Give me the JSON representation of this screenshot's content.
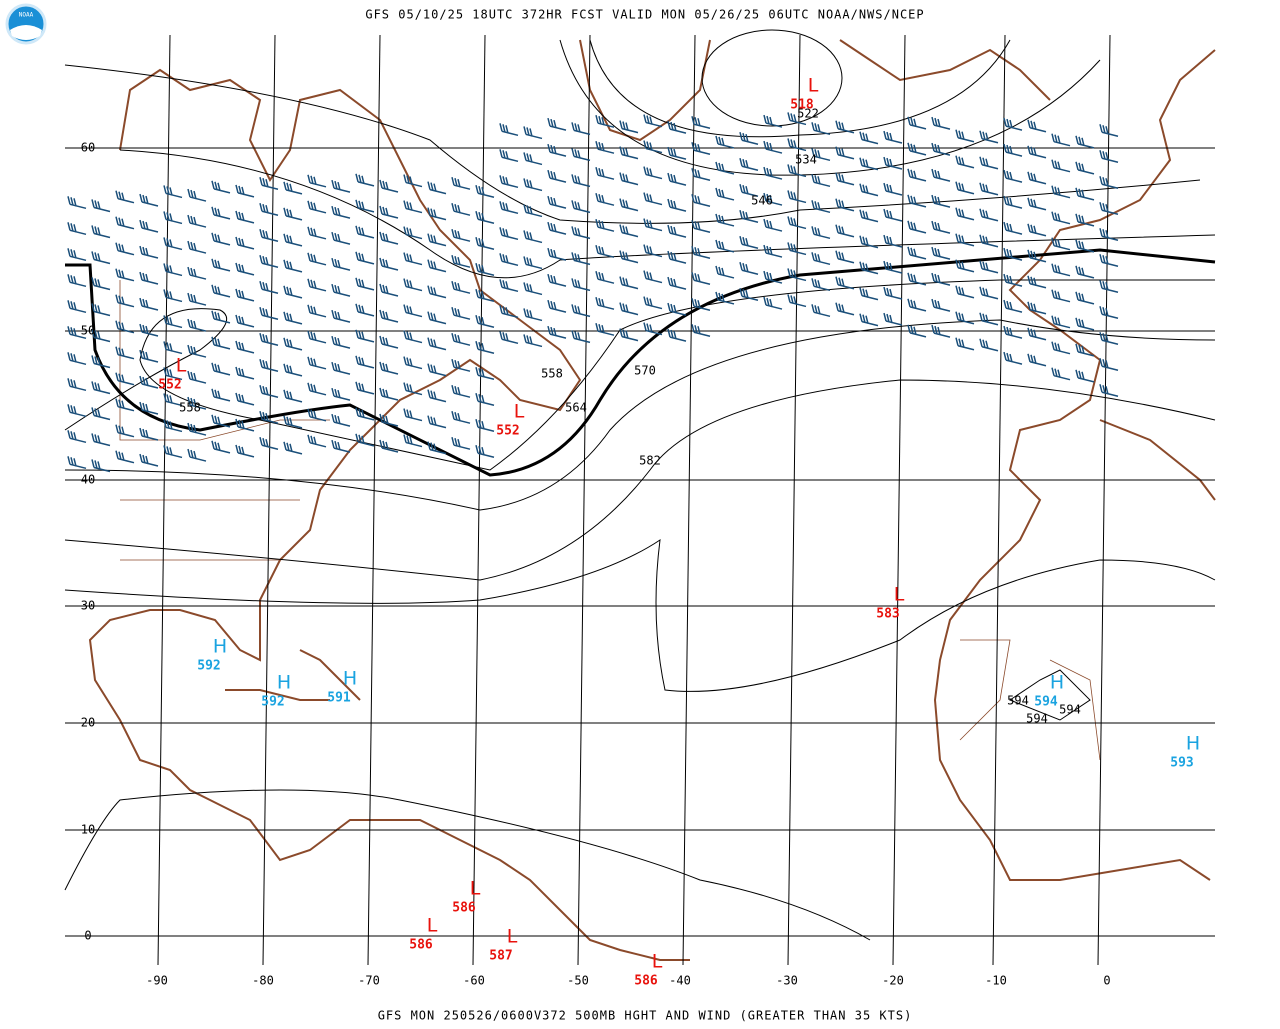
{
  "header": {
    "title": "GFS 05/10/25 18UTC 372HR FCST VALID MON 05/26/25 06UTC NOAA/NWS/NCEP"
  },
  "footer": {
    "caption": "GFS MON 250526/0600V372 500MB HGHT AND WIND (GREATER THAN 35 KTS)"
  },
  "logo": {
    "text": "NOAA"
  },
  "map": {
    "lat_labels": [
      "60",
      "50",
      "40",
      "30",
      "20",
      "10",
      "0"
    ],
    "lon_labels": [
      "-90",
      "-80",
      "-70",
      "-60",
      "-50",
      "-40",
      "-30",
      "-20",
      "-10",
      "0"
    ],
    "contour_labels": [
      "522",
      "534",
      "546",
      "558",
      "558",
      "564",
      "570",
      "582",
      "594",
      "594",
      "594"
    ],
    "centers": [
      {
        "symbol": "L",
        "value": "518"
      },
      {
        "symbol": "L",
        "value": "552"
      },
      {
        "symbol": "L",
        "value": "552"
      },
      {
        "symbol": "L",
        "value": "583"
      },
      {
        "symbol": "H",
        "value": "592"
      },
      {
        "symbol": "H",
        "value": "592"
      },
      {
        "symbol": "H",
        "value": "591"
      },
      {
        "symbol": "H",
        "value": "594"
      },
      {
        "symbol": "H",
        "value": "593"
      },
      {
        "symbol": "L",
        "value": "586"
      },
      {
        "symbol": "L",
        "value": "586"
      },
      {
        "symbol": "L",
        "value": "587"
      },
      {
        "symbol": "L",
        "value": "586"
      }
    ]
  }
}
